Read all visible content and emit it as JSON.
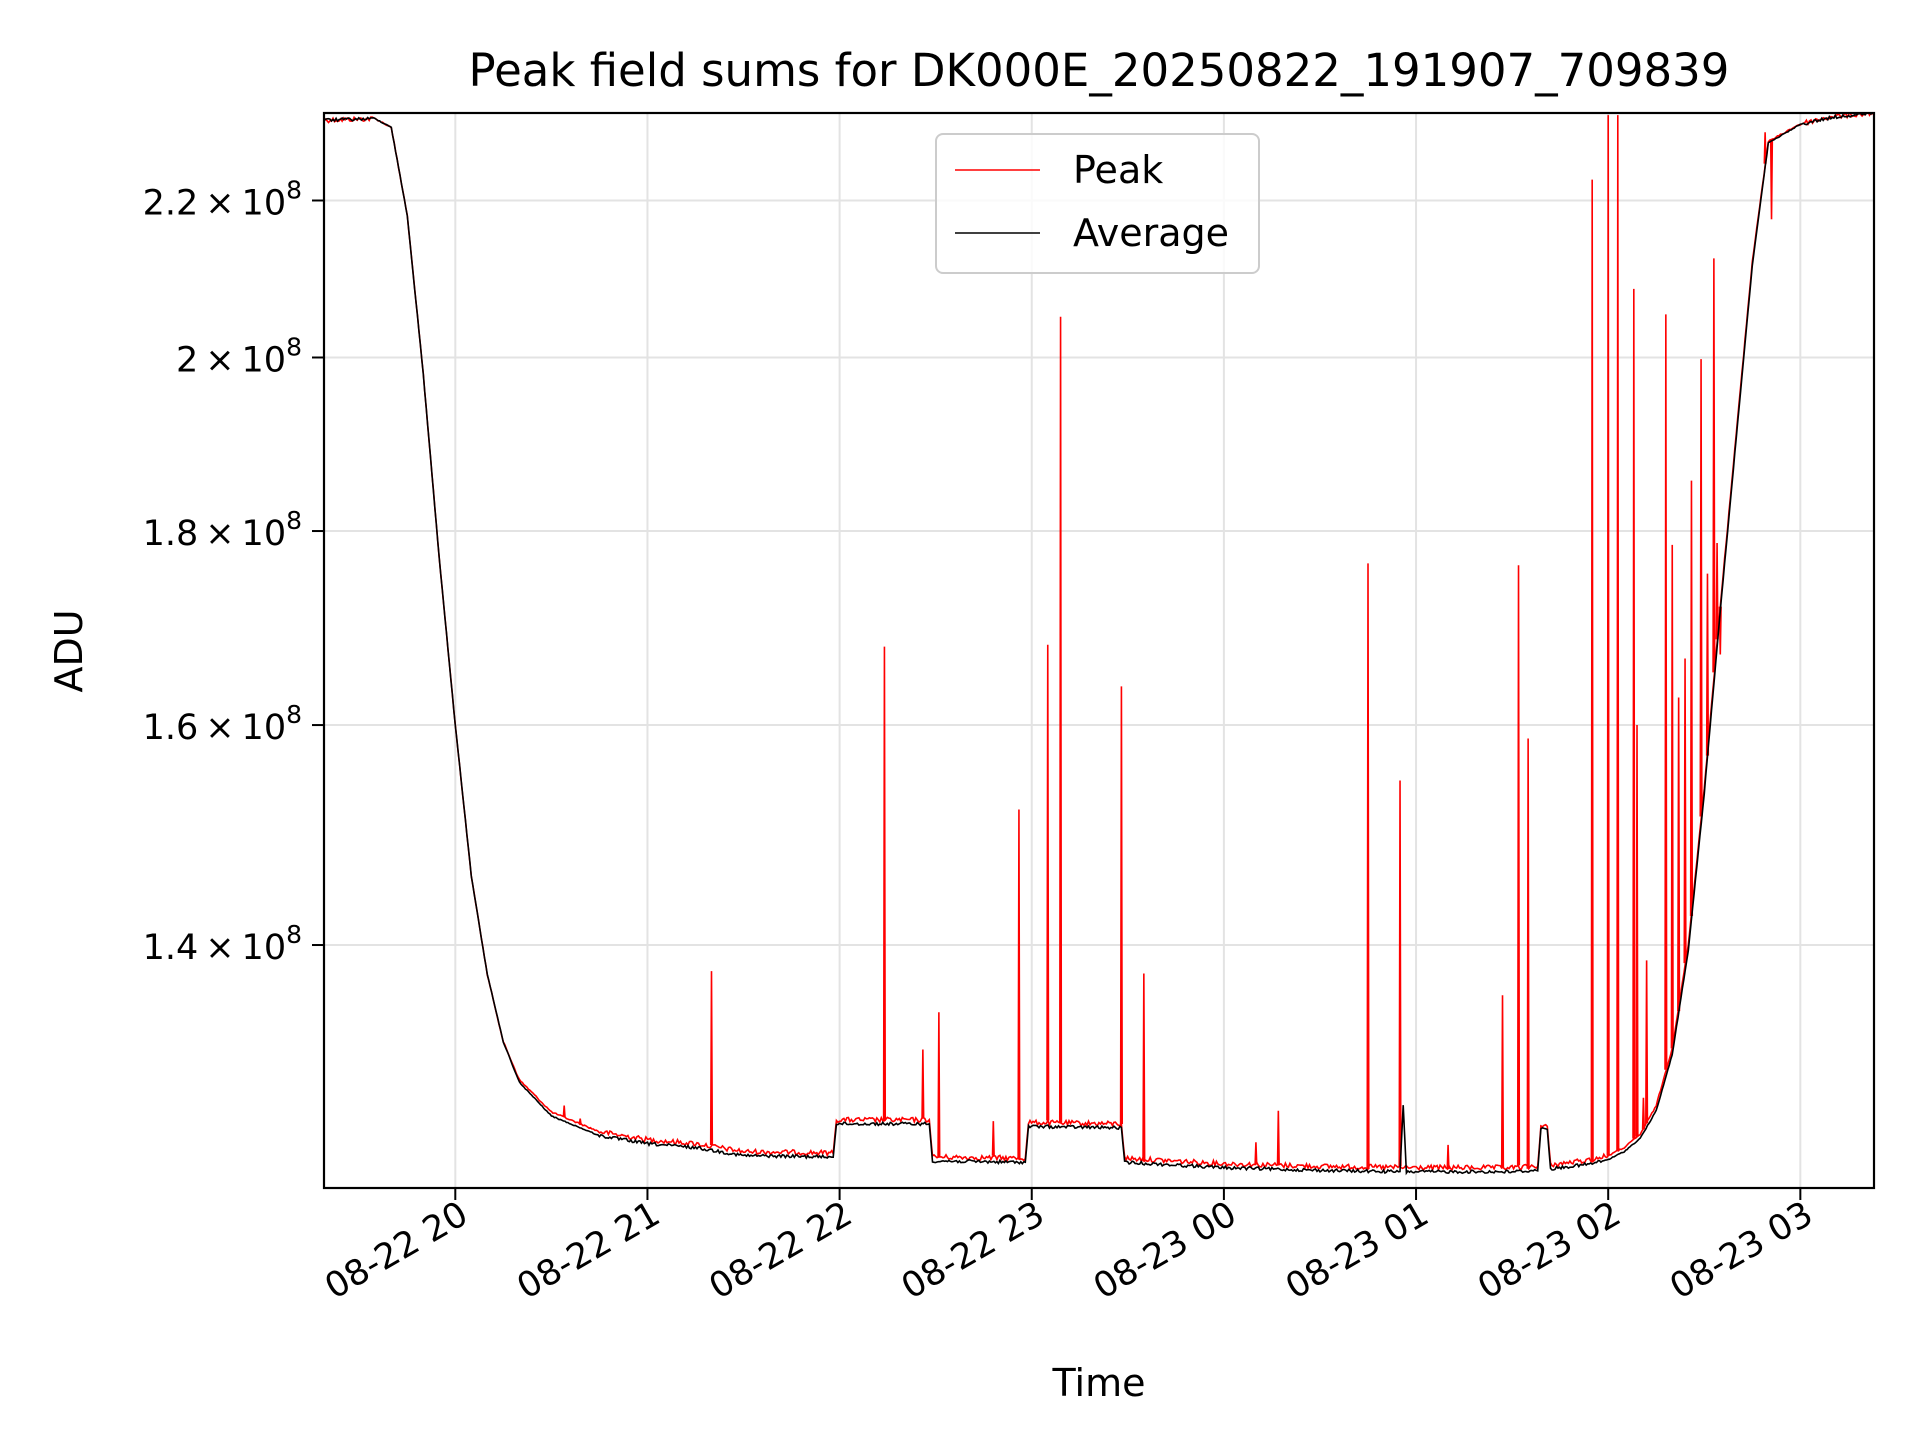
{
  "chart_data": {
    "type": "line",
    "title": "Peak field sums for DK000E_20250822_191907_709839",
    "xlabel": "Time",
    "ylabel": "ADU",
    "yscale": "log",
    "grid": true,
    "legend_position": "top-center",
    "xlim": [
      "2025-08-22 19:19",
      "2025-08-23 03:23"
    ],
    "ylim": [
      120800000,
      232000000
    ],
    "x_ticks": [
      {
        "t": "2025-08-22 20:00",
        "label": "08-22 20"
      },
      {
        "t": "2025-08-22 21:00",
        "label": "08-22 21"
      },
      {
        "t": "2025-08-22 22:00",
        "label": "08-22 22"
      },
      {
        "t": "2025-08-22 23:00",
        "label": "08-22 23"
      },
      {
        "t": "2025-08-23 00:00",
        "label": "08-23 00"
      },
      {
        "t": "2025-08-23 01:00",
        "label": "08-23 01"
      },
      {
        "t": "2025-08-23 02:00",
        "label": "08-23 02"
      },
      {
        "t": "2025-08-23 03:00",
        "label": "08-23 03"
      }
    ],
    "y_ticks": [
      {
        "value": 140000000,
        "mant": "1.4",
        "exp": "8"
      },
      {
        "value": 160000000,
        "mant": "1.6",
        "exp": "8"
      },
      {
        "value": 180000000,
        "mant": "1.8",
        "exp": "8"
      },
      {
        "value": 200000000,
        "mant": "2",
        "exp": "8"
      },
      {
        "value": 220000000,
        "mant": "2.2",
        "exp": "8"
      }
    ],
    "series": [
      {
        "name": "Peak",
        "color": "#ff0000",
        "baseline_points": [
          [
            "2025-08-22 19:19",
            231000000
          ],
          [
            "2025-08-22 19:35",
            231200000
          ],
          [
            "2025-08-22 19:40",
            230000000
          ],
          [
            "2025-08-22 19:45",
            218000000
          ],
          [
            "2025-08-22 19:50",
            198000000
          ],
          [
            "2025-08-22 19:55",
            177000000
          ],
          [
            "2025-08-22 20:00",
            160000000
          ],
          [
            "2025-08-22 20:05",
            146000000
          ],
          [
            "2025-08-22 20:10",
            137500000
          ],
          [
            "2025-08-22 20:15",
            132000000
          ],
          [
            "2025-08-22 20:20",
            129000000
          ],
          [
            "2025-08-22 20:30",
            126500000
          ],
          [
            "2025-08-22 20:45",
            125000000
          ],
          [
            "2025-08-22 21:00",
            124400000
          ],
          [
            "2025-08-22 21:15",
            124100000
          ],
          [
            "2025-08-22 21:30",
            123500000
          ],
          [
            "2025-08-22 21:58",
            123400000
          ],
          [
            "2025-08-22 21:59",
            125900000
          ],
          [
            "2025-08-22 22:28",
            125900000
          ],
          [
            "2025-08-22 22:29",
            123100000
          ],
          [
            "2025-08-22 22:58",
            123000000
          ],
          [
            "2025-08-22 22:59",
            125700000
          ],
          [
            "2025-08-22 23:28",
            125600000
          ],
          [
            "2025-08-22 23:29",
            123000000
          ],
          [
            "2025-08-23 00:00",
            122600000
          ],
          [
            "2025-08-23 00:30",
            122400000
          ],
          [
            "2025-08-23 01:00",
            122300000
          ],
          [
            "2025-08-23 01:30",
            122300000
          ],
          [
            "2025-08-23 01:38",
            122400000
          ],
          [
            "2025-08-23 01:39",
            125400000
          ],
          [
            "2025-08-23 01:41",
            125400000
          ],
          [
            "2025-08-23 01:42",
            122500000
          ],
          [
            "2025-08-23 01:55",
            122900000
          ],
          [
            "2025-08-23 02:00",
            123200000
          ],
          [
            "2025-08-23 02:05",
            123800000
          ],
          [
            "2025-08-23 02:10",
            124800000
          ],
          [
            "2025-08-23 02:15",
            127000000
          ],
          [
            "2025-08-23 02:20",
            131500000
          ],
          [
            "2025-08-23 02:25",
            140000000
          ],
          [
            "2025-08-23 02:30",
            154000000
          ],
          [
            "2025-08-23 02:35",
            172000000
          ],
          [
            "2025-08-23 02:40",
            191000000
          ],
          [
            "2025-08-23 02:45",
            212000000
          ],
          [
            "2025-08-23 02:50",
            228000000
          ],
          [
            "2025-08-23 03:00",
            230500000
          ],
          [
            "2025-08-23 03:10",
            231500000
          ],
          [
            "2025-08-23 03:23",
            232000000
          ]
        ],
        "spikes": [
          [
            "2025-08-22 20:34",
            127000000
          ],
          [
            "2025-08-22 20:39",
            126000000
          ],
          [
            "2025-08-22 21:20",
            137800000
          ],
          [
            "2025-08-22 22:14",
            167800000
          ],
          [
            "2025-08-22 22:26",
            131400000
          ],
          [
            "2025-08-22 22:31",
            134400000
          ],
          [
            "2025-08-22 22:48",
            125800000
          ],
          [
            "2025-08-22 22:56",
            152000000
          ],
          [
            "2025-08-22 23:05",
            168000000
          ],
          [
            "2025-08-22 23:09",
            205000000
          ],
          [
            "2025-08-22 23:28",
            163800000
          ],
          [
            "2025-08-22 23:35",
            137600000
          ],
          [
            "2025-08-23 00:10",
            124200000
          ],
          [
            "2025-08-23 00:17",
            126600000
          ],
          [
            "2025-08-23 00:45",
            176500000
          ],
          [
            "2025-08-23 00:55",
            154700000
          ],
          [
            "2025-08-23 01:10",
            124000000
          ],
          [
            "2025-08-23 01:27",
            135800000
          ],
          [
            "2025-08-23 01:32",
            176300000
          ],
          [
            "2025-08-23 01:35",
            158700000
          ],
          [
            "2025-08-23 01:55",
            222800000
          ],
          [
            "2025-08-23 02:00",
            231700000
          ],
          [
            "2025-08-23 02:03",
            231700000
          ],
          [
            "2025-08-23 02:08",
            208500000
          ],
          [
            "2025-08-23 02:09",
            160000000
          ],
          [
            "2025-08-23 02:11",
            127600000
          ],
          [
            "2025-08-23 02:12",
            138700000
          ],
          [
            "2025-08-23 02:18",
            205300000
          ],
          [
            "2025-08-23 02:20",
            178500000
          ],
          [
            "2025-08-23 02:22",
            162700000
          ],
          [
            "2025-08-23 02:24",
            166600000
          ],
          [
            "2025-08-23 02:26",
            185600000
          ],
          [
            "2025-08-23 02:29",
            199800000
          ],
          [
            "2025-08-23 02:31",
            175400000
          ],
          [
            "2025-08-23 02:33",
            212400000
          ],
          [
            "2025-08-23 02:34",
            178700000
          ],
          [
            "2025-08-23 02:35",
            167000000
          ],
          [
            "2025-08-23 02:49",
            229300000
          ],
          [
            "2025-08-23 02:51",
            217500000
          ]
        ]
      },
      {
        "name": "Average",
        "color": "#000000",
        "points": [
          [
            "2025-08-22 19:19",
            231000000
          ],
          [
            "2025-08-22 19:35",
            231200000
          ],
          [
            "2025-08-22 19:40",
            230000000
          ],
          [
            "2025-08-22 19:45",
            218000000
          ],
          [
            "2025-08-22 19:50",
            198000000
          ],
          [
            "2025-08-22 19:55",
            177000000
          ],
          [
            "2025-08-22 20:00",
            160000000
          ],
          [
            "2025-08-22 20:05",
            146000000
          ],
          [
            "2025-08-22 20:10",
            137500000
          ],
          [
            "2025-08-22 20:15",
            132000000
          ],
          [
            "2025-08-22 20:20",
            128800000
          ],
          [
            "2025-08-22 20:30",
            126200000
          ],
          [
            "2025-08-22 20:45",
            124700000
          ],
          [
            "2025-08-22 21:00",
            124100000
          ],
          [
            "2025-08-22 21:15",
            123800000
          ],
          [
            "2025-08-22 21:30",
            123200000
          ],
          [
            "2025-08-22 21:58",
            123100000
          ],
          [
            "2025-08-22 21:59",
            125600000
          ],
          [
            "2025-08-22 22:28",
            125600000
          ],
          [
            "2025-08-22 22:29",
            122800000
          ],
          [
            "2025-08-22 22:58",
            122700000
          ],
          [
            "2025-08-22 22:59",
            125400000
          ],
          [
            "2025-08-22 23:28",
            125300000
          ],
          [
            "2025-08-22 23:29",
            122700000
          ],
          [
            "2025-08-23 00:00",
            122300000
          ],
          [
            "2025-08-23 00:30",
            122100000
          ],
          [
            "2025-08-23 00:55",
            122000000
          ],
          [
            "2025-08-23 00:56",
            127000000
          ],
          [
            "2025-08-23 00:57",
            122000000
          ],
          [
            "2025-08-23 01:30",
            122000000
          ],
          [
            "2025-08-23 01:38",
            122100000
          ],
          [
            "2025-08-23 01:39",
            125200000
          ],
          [
            "2025-08-23 01:41",
            125200000
          ],
          [
            "2025-08-23 01:42",
            122200000
          ],
          [
            "2025-08-23 01:55",
            122600000
          ],
          [
            "2025-08-23 02:00",
            122900000
          ],
          [
            "2025-08-23 02:05",
            123500000
          ],
          [
            "2025-08-23 02:10",
            124500000
          ],
          [
            "2025-08-23 02:15",
            126600000
          ],
          [
            "2025-08-23 02:20",
            131000000
          ],
          [
            "2025-08-23 02:25",
            139500000
          ],
          [
            "2025-08-23 02:30",
            153500000
          ],
          [
            "2025-08-23 02:35",
            171500000
          ],
          [
            "2025-08-23 02:40",
            190500000
          ],
          [
            "2025-08-23 02:45",
            211500000
          ],
          [
            "2025-08-23 02:50",
            227800000
          ],
          [
            "2025-08-23 03:00",
            230400000
          ],
          [
            "2025-08-23 03:10",
            231400000
          ],
          [
            "2025-08-23 03:23",
            232000000
          ]
        ]
      }
    ]
  }
}
